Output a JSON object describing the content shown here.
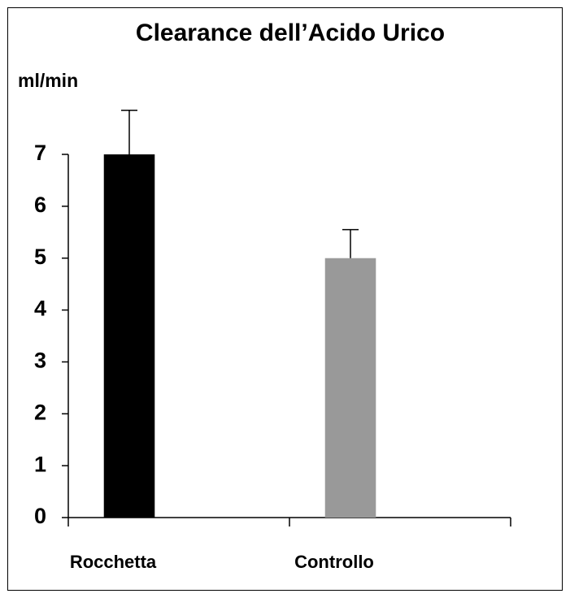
{
  "chart_data": {
    "type": "bar",
    "title": "Clearance dell’Acido Urico",
    "y_label": "ml/min",
    "categories": [
      "Rocchetta",
      "Controllo"
    ],
    "values": [
      7.0,
      5.0
    ],
    "errors": [
      0.85,
      0.55
    ],
    "colors": [
      "#000000",
      "#999999"
    ],
    "ylim": [
      0,
      7
    ],
    "yticks": [
      0,
      1,
      2,
      3,
      4,
      5,
      6,
      7
    ],
    "grid": false
  }
}
